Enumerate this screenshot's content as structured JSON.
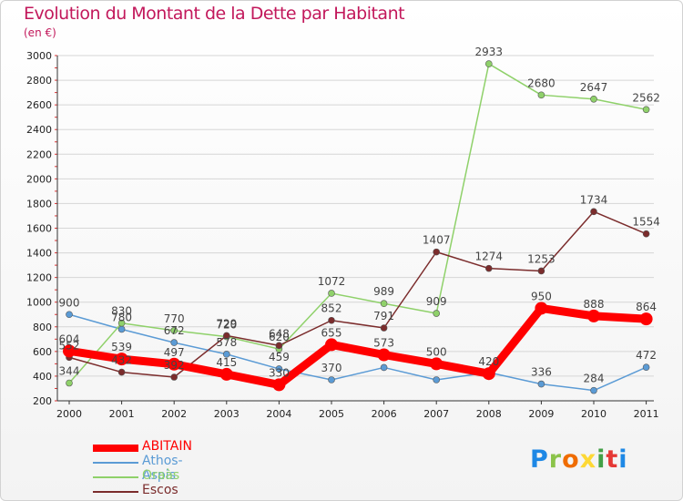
{
  "title": "Evolution du Montant de la Dette par Habitant",
  "subtitle": "(en €)",
  "colors": {
    "title": "#c2185b",
    "grid": "#d6d6d6",
    "axis_text": "#222222"
  },
  "logo": {
    "text": [
      "P",
      "r",
      "o",
      "x",
      "i",
      "t",
      "i"
    ],
    "colors": [
      "#1e88e5",
      "#8bc34a",
      "#ef6c00",
      "#fdd835",
      "#43a047",
      "#e53935",
      "#1e88e5"
    ]
  },
  "chart_data": {
    "type": "line",
    "title": "Evolution du Montant de la Dette par Habitant",
    "subtitle": "(en €)",
    "xlabel": "",
    "ylabel": "",
    "x": [
      "2000",
      "2001",
      "2002",
      "2003",
      "2004",
      "2005",
      "2006",
      "2007",
      "2008",
      "2009",
      "2010",
      "2011"
    ],
    "ylim": [
      200,
      3000
    ],
    "yticks": [
      200,
      400,
      600,
      800,
      1000,
      1200,
      1400,
      1600,
      1800,
      2000,
      2200,
      2400,
      2600,
      2800,
      3000
    ],
    "grid": true,
    "legend_position": "bottom-left",
    "series": [
      {
        "name": "ABITAIN",
        "color": "#ff0000",
        "thick": true,
        "values": [
          604,
          539,
          497,
          415,
          330,
          655,
          573,
          500,
          420,
          950,
          888,
          864
        ],
        "labels": [
          "604",
          "539",
          "497",
          "415",
          "330",
          "655",
          "573",
          "500",
          "420",
          "950",
          "888",
          "864"
        ]
      },
      {
        "name": "Athos-Aspis",
        "color": "#5b9bd5",
        "thick": false,
        "values": [
          900,
          780,
          672,
          578,
          459,
          370,
          470,
          370,
          430,
          336,
          284,
          472
        ],
        "labels": [
          "900",
          "780",
          "672",
          "578",
          "459",
          "370",
          "",
          "",
          "",
          "336",
          "284",
          "472"
        ]
      },
      {
        "name": "Oraàs",
        "color": "#8fd16a",
        "thick": false,
        "values": [
          344,
          830,
          770,
          720,
          620,
          1072,
          989,
          909,
          2933,
          2680,
          2647,
          2562
        ],
        "labels": [
          "344",
          "830",
          "770",
          "720",
          "620",
          "1072",
          "989",
          "909",
          "2933",
          "2680",
          "2647",
          "2562"
        ]
      },
      {
        "name": "Escos",
        "color": "#7b2c2c",
        "thick": false,
        "values": [
          552,
          432,
          392,
          729,
          648,
          852,
          791,
          1407,
          1274,
          1253,
          1734,
          1554
        ],
        "labels": [
          "552",
          "432",
          "392",
          "729",
          "648",
          "852",
          "791",
          "1407",
          "1274",
          "1253",
          "1734",
          "1554"
        ]
      }
    ]
  }
}
